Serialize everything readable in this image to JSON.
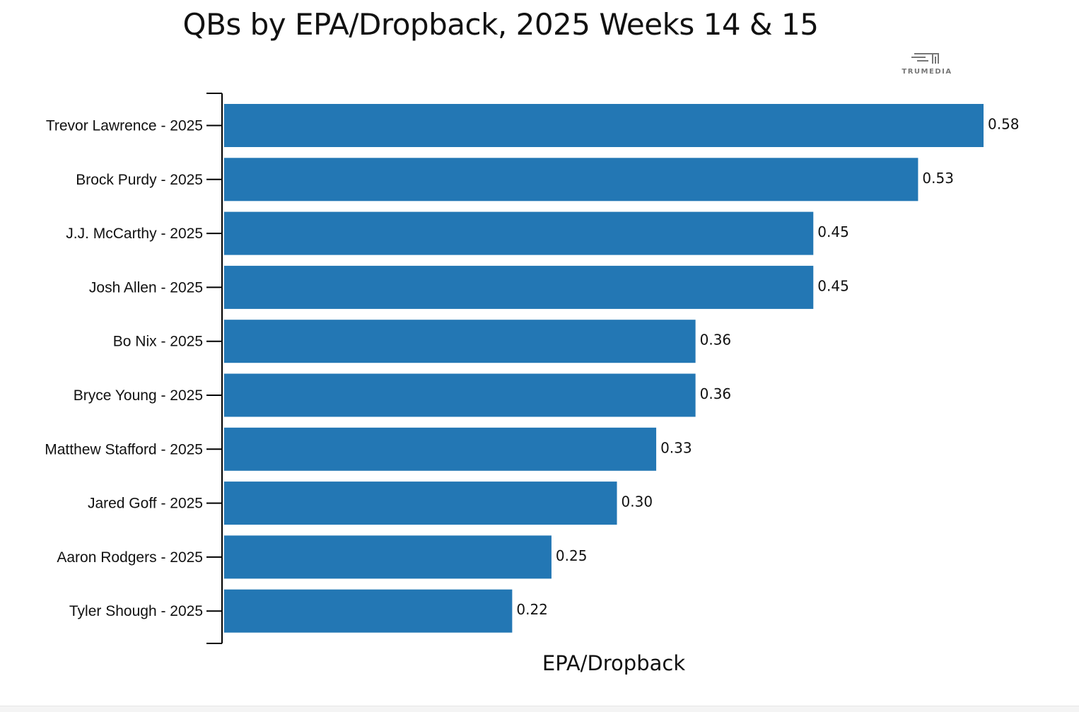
{
  "colors": {
    "bar": "#2377b4",
    "axis": "#000000",
    "text": "#111111"
  },
  "brand": {
    "name": "TRUMEDIA",
    "icon": "trumedia-logo-icon"
  },
  "chart_data": {
    "type": "bar",
    "orientation": "horizontal",
    "title": "QBs by EPA/Dropback, 2025 Weeks 14 & 15",
    "xlabel": "EPA/Dropback",
    "ylabel": "",
    "xlim": [
      0,
      0.6
    ],
    "grid": false,
    "legend": "none",
    "categories": [
      "Trevor Lawrence - 2025",
      "Brock Purdy - 2025",
      "J.J. McCarthy - 2025",
      "Josh Allen - 2025",
      "Bo Nix - 2025",
      "Bryce Young - 2025",
      "Matthew Stafford - 2025",
      "Jared Goff - 2025",
      "Aaron Rodgers - 2025",
      "Tyler Shough - 2025"
    ],
    "values": [
      0.58,
      0.53,
      0.45,
      0.45,
      0.36,
      0.36,
      0.33,
      0.3,
      0.25,
      0.22
    ],
    "labels": [
      "0.58",
      "0.53",
      "0.45",
      "0.45",
      "0.36",
      "0.36",
      "0.33",
      "0.30",
      "0.25",
      "0.22"
    ]
  }
}
